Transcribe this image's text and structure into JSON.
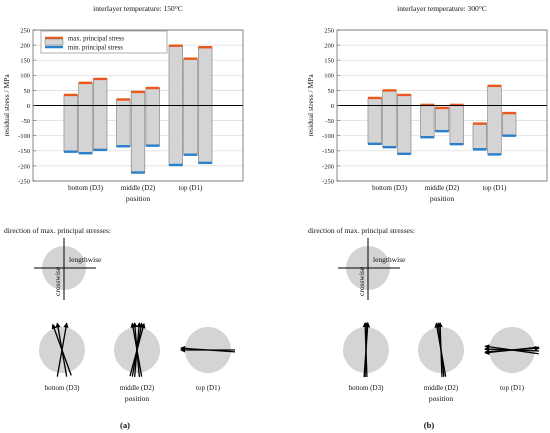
{
  "chart_data": [
    {
      "type": "bar",
      "title": "interlayer temperature: 150°C",
      "xlabel": "position",
      "ylabel": "residual stress / MPa",
      "ylim": [
        -250,
        250
      ],
      "yticks": [
        -250,
        -200,
        -150,
        -100,
        -50,
        0,
        50,
        100,
        150,
        200,
        250
      ],
      "grid": true,
      "legend_position": "top-right",
      "categories": [
        "bottom (D3)",
        "middle (D2)",
        "top (D1)"
      ],
      "series": [
        {
          "name": "max. principal stress",
          "color": "#e8581f",
          "values": [
            [
              35,
              75,
              88
            ],
            [
              20,
              45,
              58
            ],
            [
              198,
              155,
              193
            ]
          ]
        },
        {
          "name": "min. principal stress",
          "color": "#2c7fc9",
          "values": [
            [
              -153,
              -158,
              -147
            ],
            [
              -135,
              -222,
              -133
            ],
            [
              -197,
              -163,
              -190
            ]
          ]
        }
      ]
    },
    {
      "type": "bar",
      "title": "interlayer temperature: 300°C",
      "xlabel": "position",
      "ylabel": "residual stress / MPa",
      "ylim": [
        -250,
        250
      ],
      "yticks": [
        -250,
        -200,
        -150,
        -100,
        -50,
        0,
        50,
        100,
        150,
        200,
        250
      ],
      "grid": true,
      "categories": [
        "bottom (D3)",
        "middle (D2)",
        "top (D1)"
      ],
      "series": [
        {
          "name": "max. principal stress",
          "color": "#e8581f",
          "values": [
            [
              25,
              50,
              35
            ],
            [
              2,
              -8,
              2
            ],
            [
              -60,
              65,
              -25
            ]
          ]
        },
        {
          "name": "min. principal stress",
          "color": "#2c7fc9",
          "values": [
            [
              -127,
              -138,
              -160
            ],
            [
              -105,
              -85,
              -128
            ],
            [
              -145,
              -162,
              -100
            ]
          ]
        }
      ]
    }
  ],
  "directions": [
    {
      "title": "direction of max. principal stresses:",
      "reference_labels": {
        "lengthwise": "lengthwise",
        "crosswise": "crosswise"
      },
      "circles": [
        {
          "label": "bottom (D3)",
          "angles_deg": [
            100,
            110,
            80
          ]
        },
        {
          "label": "middle (D2)",
          "angles_deg": [
            100,
            85,
            80,
            95,
            75
          ]
        },
        {
          "label": "top (D1)",
          "angles_deg": [
            176,
            180
          ]
        }
      ],
      "xlabel": "position",
      "panel_label": "(a)"
    },
    {
      "title": "direction of max. principal stresses:",
      "reference_labels": {
        "lengthwise": "lengthwise",
        "crosswise": "crosswise"
      },
      "circles": [
        {
          "label": "bottom (D3)",
          "angles_deg": [
            88,
            92,
            86
          ]
        },
        {
          "label": "middle (D2)",
          "angles_deg": [
            96,
            100,
            92
          ]
        },
        {
          "label": "top (D1)",
          "angles_deg": [
            172,
            186,
            178,
            4
          ]
        }
      ],
      "xlabel": "position",
      "panel_label": "(b)"
    }
  ]
}
